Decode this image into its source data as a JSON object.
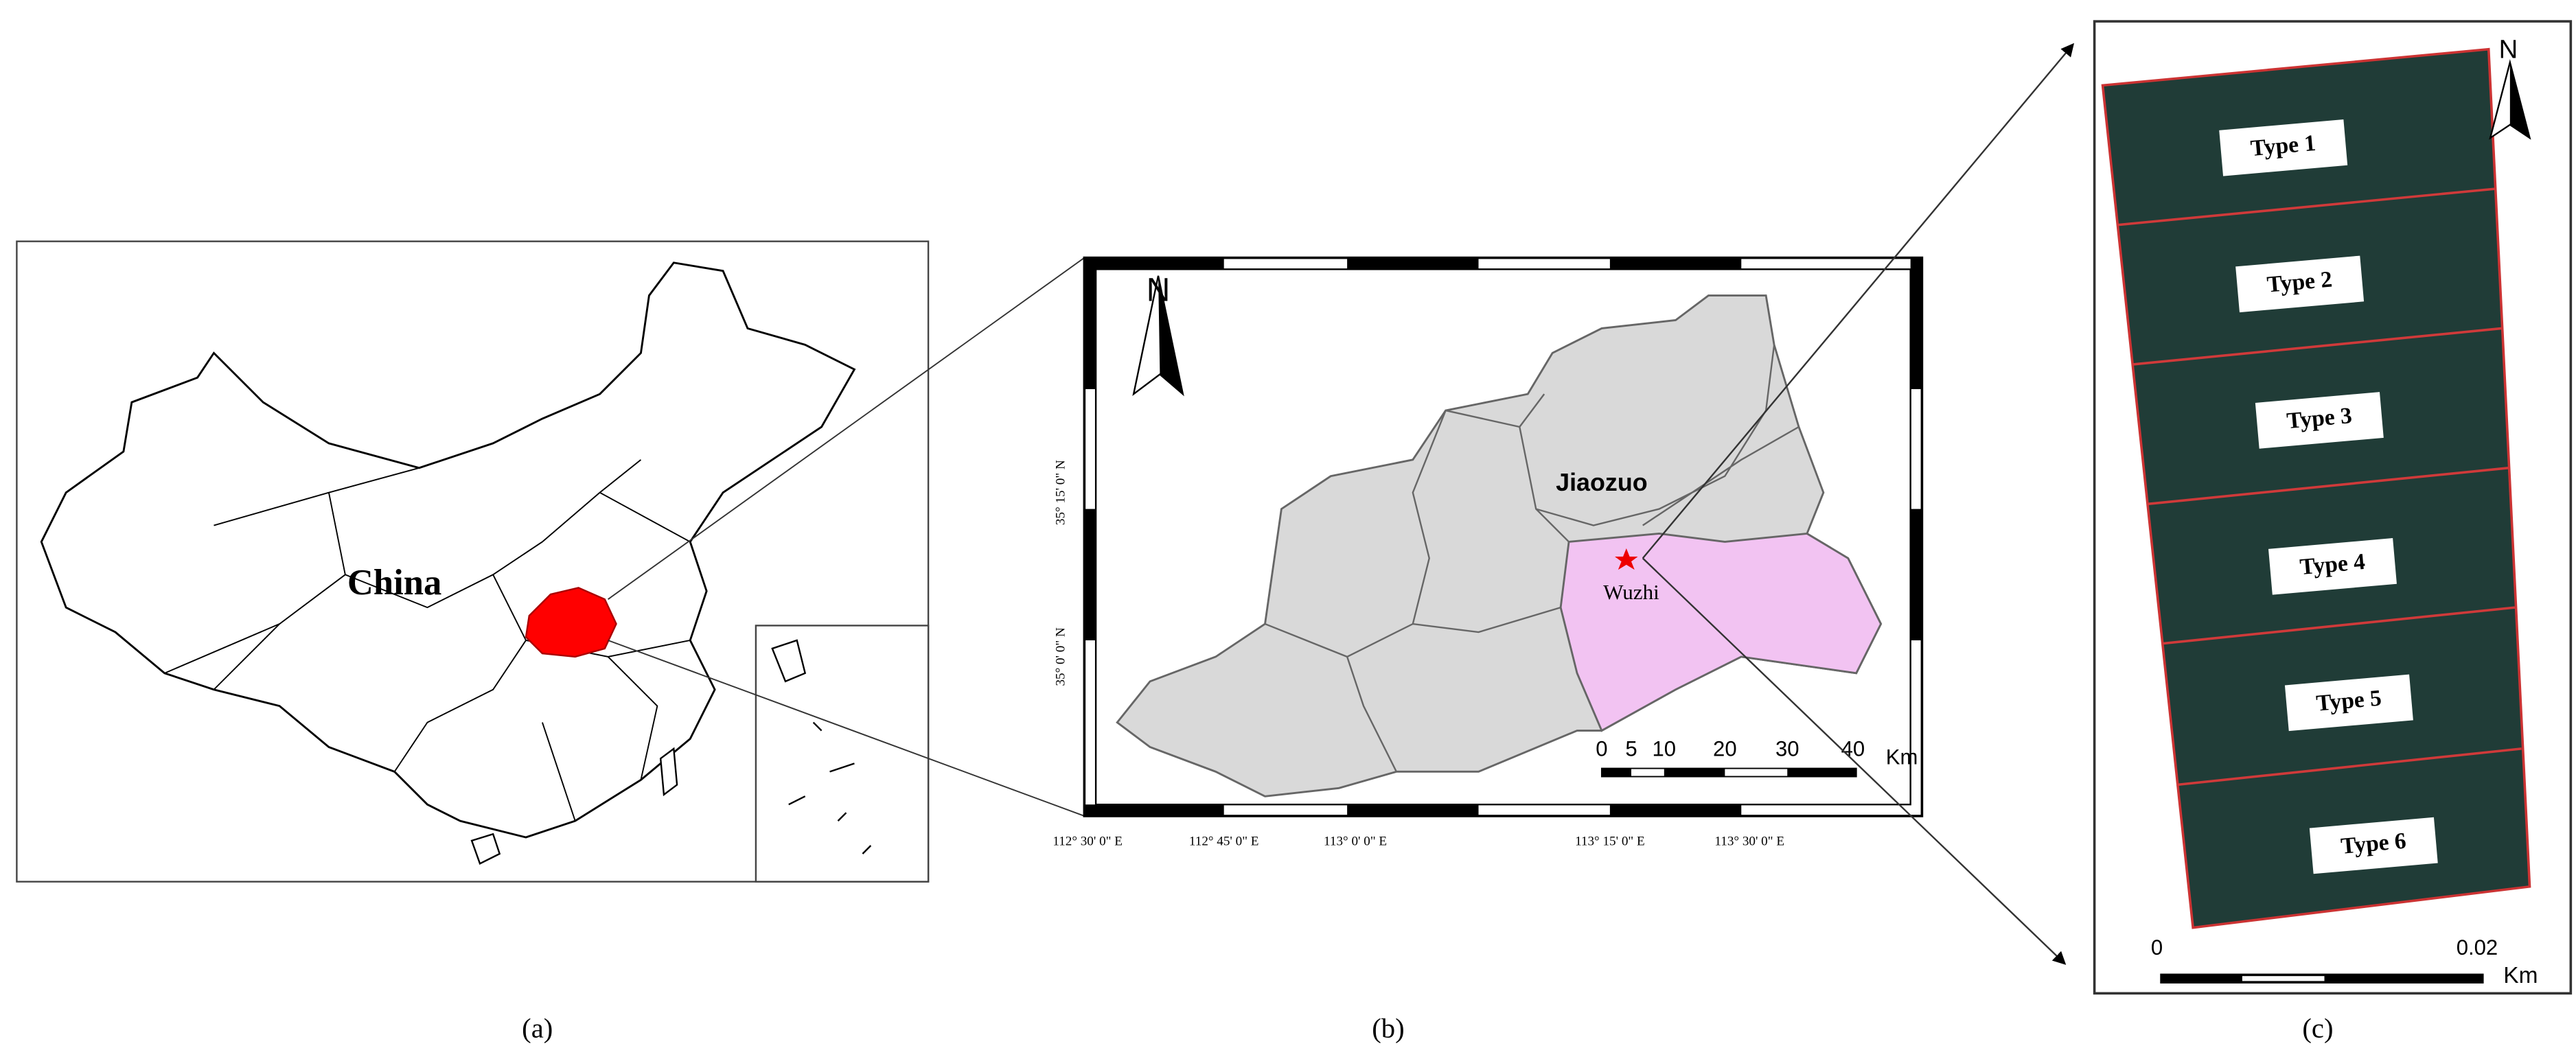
{
  "panels": [
    {
      "caption": "(a)",
      "labels": [
        "China"
      ]
    },
    {
      "caption": "(b)",
      "north": "N",
      "labels": [
        "Jiaozuo",
        "Wuzhi"
      ],
      "latitude_labels": [
        "35° 15' 0\" N",
        "35° 0' 0\" N"
      ],
      "longitude_labels": [
        "112° 30' 0\" E",
        "112° 45' 0\" E",
        "113° 0' 0\" E",
        "113° 15' 0\" E",
        "113° 30' 0\" E"
      ],
      "scale_labels": [
        "0",
        "5",
        "10",
        "20",
        "30",
        "40"
      ],
      "scale_unit": "Km"
    },
    {
      "caption": "(c)",
      "north": "N",
      "plots": [
        "Type 1",
        "Type 2",
        "Type 3",
        "Type 4",
        "Type 5",
        "Type 6"
      ],
      "scale_labels": [
        "0",
        "0.02"
      ],
      "scale_unit": "Km"
    }
  ]
}
